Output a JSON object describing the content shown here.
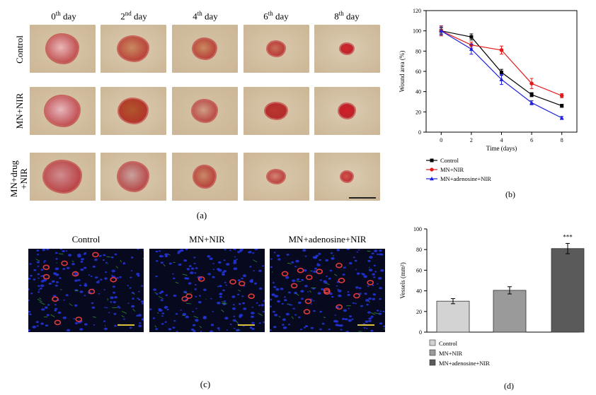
{
  "panel_a": {
    "days": [
      "0",
      "2",
      "4",
      "6",
      "8"
    ],
    "day_suffix": [
      "th",
      "nd",
      "th",
      "th",
      "th"
    ],
    "day_word": "day",
    "rows": [
      "Control",
      "MN+NIR",
      "MN+drug +NIR"
    ],
    "row_lines": [
      [
        "Control"
      ],
      [
        "MN+NIR"
      ],
      [
        "MN+drug",
        "+NIR"
      ]
    ],
    "label": "(a)"
  },
  "panel_c": {
    "titles": [
      "Control",
      "MN+NIR",
      "MN+adenosine+NIR"
    ],
    "label": "(c)"
  },
  "panel_b_label": "(b)",
  "panel_d_label": "(d)",
  "colors": {
    "control": "#000000",
    "mn_nir": "#e31a1c",
    "mn_adenosine_nir": "#1f1fe0",
    "bar_control": "#d3d3d3",
    "bar_mn_nir": "#9a9a9a",
    "bar_mn_adenosine_nir": "#5a5a5a"
  },
  "chart_data": [
    {
      "type": "line",
      "xlabel": "Time (days)",
      "ylabel": "Wound area (%)",
      "xlim": [
        -1,
        9
      ],
      "ylim": [
        0,
        120
      ],
      "xticks": [
        0,
        2,
        4,
        6,
        8
      ],
      "yticks": [
        0,
        20,
        40,
        60,
        80,
        100,
        120
      ],
      "x": [
        0,
        2,
        4,
        6,
        8
      ],
      "legend_position": "bottom",
      "series": [
        {
          "name": "Control",
          "values": [
            100,
            94,
            59,
            37,
            26
          ],
          "errors": [
            3,
            3,
            3,
            2,
            1.5
          ],
          "marker": "square",
          "color": "#000000"
        },
        {
          "name": "MN+NIR",
          "values": [
            100,
            86,
            81,
            48,
            36
          ],
          "errors": [
            5,
            3,
            4,
            5,
            2
          ],
          "marker": "circle",
          "color": "#e31a1c"
        },
        {
          "name": "MN+adenosine+NIR",
          "values": [
            100,
            82,
            52,
            29,
            14
          ],
          "errors": [
            4,
            5,
            5,
            2,
            1.5
          ],
          "marker": "triangle",
          "color": "#1f1fe0"
        }
      ]
    },
    {
      "type": "bar",
      "ylabel": "Vessels (mm²)",
      "ylim": [
        0,
        100
      ],
      "yticks": [
        0,
        20,
        40,
        60,
        80,
        100
      ],
      "categories": [
        "Control",
        "MN+NIR",
        "MN+adenosine+NIR"
      ],
      "values": [
        30,
        40.5,
        81
      ],
      "errors": [
        2.5,
        3.5,
        5
      ],
      "annotations": [
        "",
        "",
        "***"
      ],
      "legend_position": "bottom",
      "colors": [
        "#d3d3d3",
        "#9a9a9a",
        "#5a5a5a"
      ]
    }
  ]
}
